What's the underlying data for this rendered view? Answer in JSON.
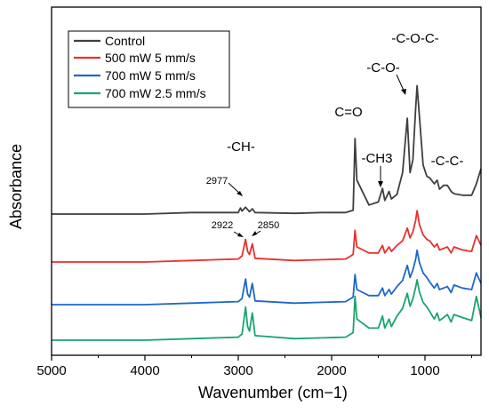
{
  "chart_data": {
    "type": "line",
    "xlabel": "Wavenumber (cm−1)",
    "ylabel": "Absorbance",
    "xlim": [
      5000,
      400
    ],
    "x_reversed": true,
    "x_ticks": [
      5000,
      4000,
      3000,
      2000,
      1000
    ],
    "y_ticks_shown": false,
    "grid": false,
    "legend_position": "top-left",
    "series": [
      {
        "name": "Control",
        "color": "#3f3f3f",
        "points": [
          [
            5000,
            0.0
          ],
          [
            4000,
            0.0
          ],
          [
            3500,
            0.02
          ],
          [
            3000,
            0.02
          ],
          [
            2977,
            0.08
          ],
          [
            2960,
            0.04
          ],
          [
            2922,
            0.09
          ],
          [
            2880,
            0.03
          ],
          [
            2850,
            0.07
          ],
          [
            2820,
            0.02
          ],
          [
            2400,
            0.01
          ],
          [
            2100,
            0.02
          ],
          [
            1850,
            0.02
          ],
          [
            1770,
            0.05
          ],
          [
            1750,
            1.0
          ],
          [
            1730,
            0.45
          ],
          [
            1600,
            0.12
          ],
          [
            1500,
            0.16
          ],
          [
            1455,
            0.34
          ],
          [
            1430,
            0.18
          ],
          [
            1385,
            0.3
          ],
          [
            1360,
            0.2
          ],
          [
            1300,
            0.26
          ],
          [
            1240,
            0.55
          ],
          [
            1190,
            1.27
          ],
          [
            1160,
            0.55
          ],
          [
            1130,
            0.72
          ],
          [
            1100,
            1.4
          ],
          [
            1085,
            1.7
          ],
          [
            1060,
            1.3
          ],
          [
            1020,
            0.65
          ],
          [
            980,
            0.5
          ],
          [
            950,
            0.48
          ],
          [
            900,
            0.4
          ],
          [
            870,
            0.45
          ],
          [
            845,
            0.33
          ],
          [
            800,
            0.38
          ],
          [
            760,
            0.38
          ],
          [
            720,
            0.3
          ],
          [
            690,
            0.27
          ],
          [
            600,
            0.25
          ],
          [
            500,
            0.25
          ],
          [
            450,
            0.4
          ],
          [
            400,
            0.6
          ]
        ]
      },
      {
        "name": "500 mW 5 mm/s",
        "color": "#e8312f",
        "points": [
          [
            5000,
            0.0
          ],
          [
            4000,
            0.0
          ],
          [
            3500,
            0.02
          ],
          [
            3000,
            0.04
          ],
          [
            2960,
            0.08
          ],
          [
            2922,
            0.3
          ],
          [
            2900,
            0.14
          ],
          [
            2880,
            0.1
          ],
          [
            2850,
            0.24
          ],
          [
            2820,
            0.05
          ],
          [
            2400,
            0.02
          ],
          [
            2100,
            0.03
          ],
          [
            1850,
            0.04
          ],
          [
            1770,
            0.1
          ],
          [
            1750,
            0.42
          ],
          [
            1730,
            0.2
          ],
          [
            1600,
            0.12
          ],
          [
            1500,
            0.12
          ],
          [
            1455,
            0.22
          ],
          [
            1430,
            0.12
          ],
          [
            1385,
            0.2
          ],
          [
            1360,
            0.14
          ],
          [
            1300,
            0.22
          ],
          [
            1240,
            0.28
          ],
          [
            1190,
            0.45
          ],
          [
            1160,
            0.32
          ],
          [
            1130,
            0.4
          ],
          [
            1100,
            0.55
          ],
          [
            1085,
            0.68
          ],
          [
            1060,
            0.5
          ],
          [
            1020,
            0.36
          ],
          [
            980,
            0.3
          ],
          [
            950,
            0.28
          ],
          [
            900,
            0.2
          ],
          [
            870,
            0.24
          ],
          [
            845,
            0.16
          ],
          [
            800,
            0.18
          ],
          [
            760,
            0.2
          ],
          [
            720,
            0.12
          ],
          [
            690,
            0.2
          ],
          [
            600,
            0.16
          ],
          [
            500,
            0.14
          ],
          [
            450,
            0.35
          ],
          [
            400,
            0.22
          ]
        ]
      },
      {
        "name": "700 mW 5 mm/s",
        "color": "#1e68c8",
        "points": [
          [
            5000,
            0.0
          ],
          [
            4000,
            0.0
          ],
          [
            3500,
            0.02
          ],
          [
            3000,
            0.04
          ],
          [
            2960,
            0.08
          ],
          [
            2922,
            0.34
          ],
          [
            2900,
            0.14
          ],
          [
            2880,
            0.1
          ],
          [
            2850,
            0.28
          ],
          [
            2820,
            0.05
          ],
          [
            2400,
            0.02
          ],
          [
            2100,
            0.03
          ],
          [
            1850,
            0.04
          ],
          [
            1770,
            0.1
          ],
          [
            1750,
            0.4
          ],
          [
            1730,
            0.2
          ],
          [
            1600,
            0.12
          ],
          [
            1500,
            0.12
          ],
          [
            1455,
            0.22
          ],
          [
            1430,
            0.12
          ],
          [
            1385,
            0.2
          ],
          [
            1360,
            0.14
          ],
          [
            1300,
            0.24
          ],
          [
            1240,
            0.32
          ],
          [
            1190,
            0.52
          ],
          [
            1160,
            0.36
          ],
          [
            1130,
            0.46
          ],
          [
            1100,
            0.6
          ],
          [
            1085,
            0.72
          ],
          [
            1060,
            0.56
          ],
          [
            1020,
            0.42
          ],
          [
            980,
            0.36
          ],
          [
            950,
            0.3
          ],
          [
            900,
            0.22
          ],
          [
            870,
            0.28
          ],
          [
            845,
            0.2
          ],
          [
            800,
            0.22
          ],
          [
            760,
            0.24
          ],
          [
            720,
            0.16
          ],
          [
            690,
            0.26
          ],
          [
            600,
            0.22
          ],
          [
            500,
            0.2
          ],
          [
            450,
            0.42
          ],
          [
            400,
            0.28
          ]
        ]
      },
      {
        "name": "700 mW 2.5 mm/s",
        "color": "#1aa46e",
        "points": [
          [
            5000,
            0.0
          ],
          [
            4000,
            0.0
          ],
          [
            3500,
            0.02
          ],
          [
            3000,
            0.04
          ],
          [
            2960,
            0.08
          ],
          [
            2922,
            0.44
          ],
          [
            2900,
            0.18
          ],
          [
            2880,
            0.12
          ],
          [
            2850,
            0.36
          ],
          [
            2820,
            0.06
          ],
          [
            2400,
            0.02
          ],
          [
            2100,
            0.03
          ],
          [
            1850,
            0.04
          ],
          [
            1770,
            0.1
          ],
          [
            1750,
            0.58
          ],
          [
            1730,
            0.28
          ],
          [
            1600,
            0.16
          ],
          [
            1500,
            0.16
          ],
          [
            1455,
            0.32
          ],
          [
            1430,
            0.16
          ],
          [
            1385,
            0.28
          ],
          [
            1360,
            0.18
          ],
          [
            1300,
            0.32
          ],
          [
            1240,
            0.42
          ],
          [
            1190,
            0.62
          ],
          [
            1160,
            0.45
          ],
          [
            1130,
            0.55
          ],
          [
            1100,
            0.7
          ],
          [
            1085,
            0.8
          ],
          [
            1060,
            0.64
          ],
          [
            1020,
            0.5
          ],
          [
            980,
            0.44
          ],
          [
            950,
            0.38
          ],
          [
            900,
            0.28
          ],
          [
            870,
            0.36
          ],
          [
            845,
            0.26
          ],
          [
            800,
            0.3
          ],
          [
            760,
            0.34
          ],
          [
            720,
            0.24
          ],
          [
            690,
            0.34
          ],
          [
            600,
            0.3
          ],
          [
            500,
            0.26
          ],
          [
            450,
            0.58
          ],
          [
            400,
            0.3
          ]
        ]
      }
    ],
    "annotations": {
      "peak_labels": [
        "2977",
        "2922",
        "2850"
      ],
      "group_labels": [
        "-CH-",
        "C=O",
        "-CH3",
        "-C-O-",
        "-C-O-C-",
        "-C-C-"
      ]
    }
  }
}
